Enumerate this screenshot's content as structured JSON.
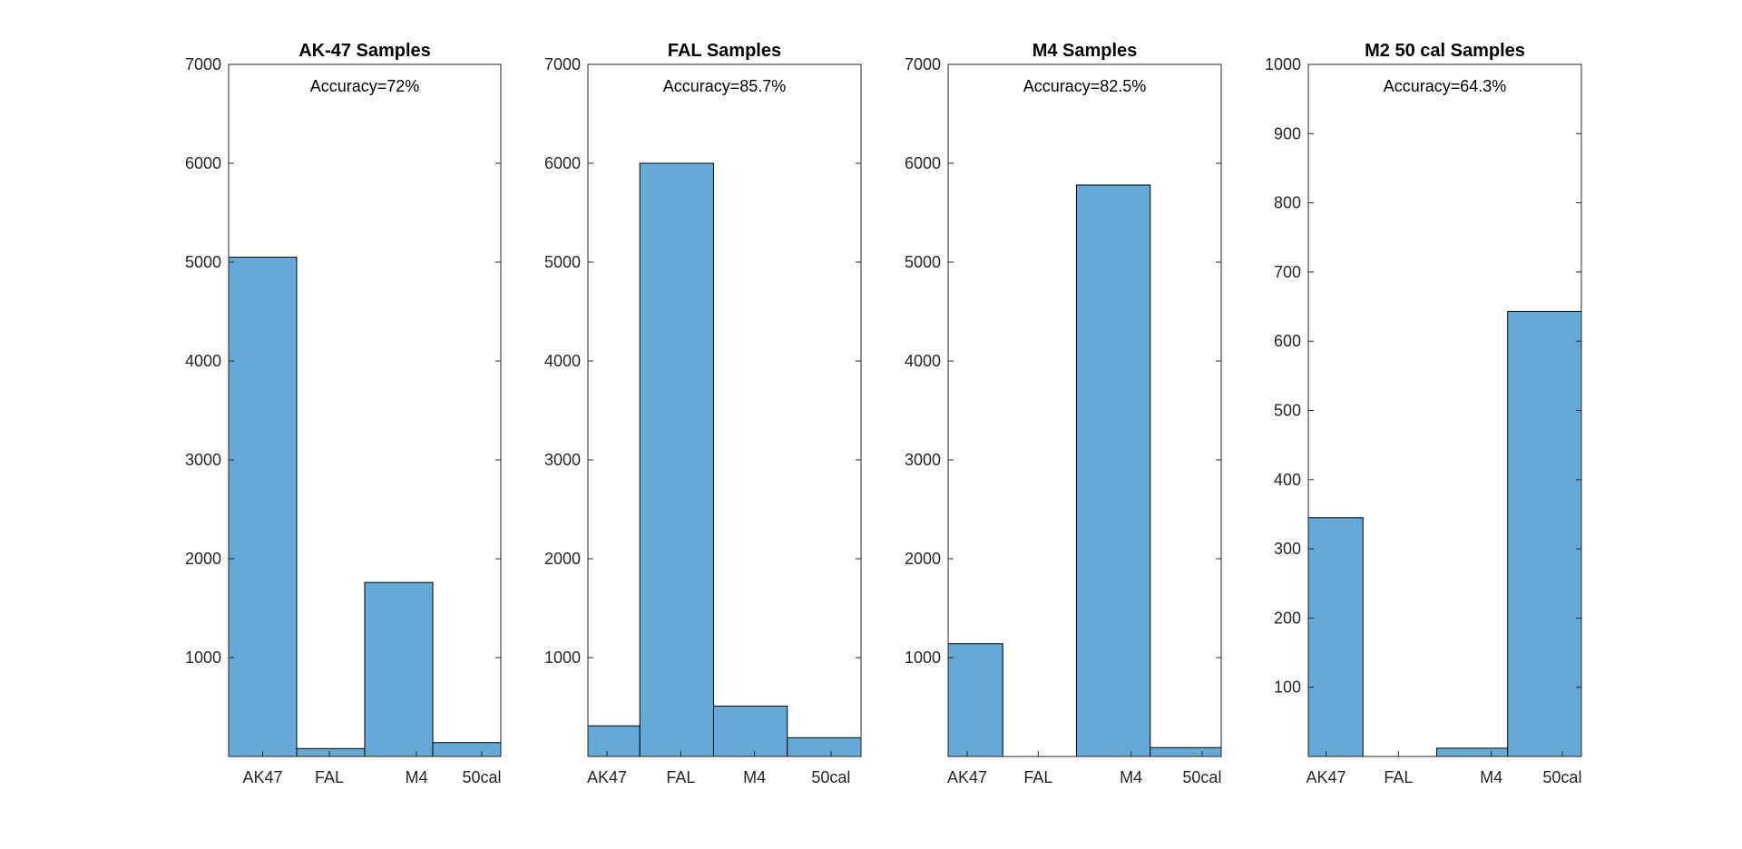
{
  "chart_data": [
    {
      "type": "bar",
      "title": "AK-47 Samples",
      "annotation": "Accuracy=72%",
      "categories": [
        "AK47",
        "FAL",
        "M4",
        "50cal"
      ],
      "values": [
        5050,
        80,
        1760,
        140
      ],
      "ylim": [
        0,
        7000
      ],
      "yticks": [
        1000,
        2000,
        3000,
        4000,
        5000,
        6000,
        7000
      ],
      "bar_color": "#65aad6",
      "xlabel": "",
      "ylabel": ""
    },
    {
      "type": "bar",
      "title": "FAL Samples",
      "annotation": "Accuracy=85.7%",
      "categories": [
        "AK47",
        "FAL",
        "M4",
        "50cal"
      ],
      "values": [
        310,
        6000,
        510,
        190
      ],
      "ylim": [
        0,
        7000
      ],
      "yticks": [
        1000,
        2000,
        3000,
        4000,
        5000,
        6000,
        7000
      ],
      "bar_color": "#65aad6",
      "xlabel": "",
      "ylabel": ""
    },
    {
      "type": "bar",
      "title": "M4 Samples",
      "annotation": "Accuracy=82.5%",
      "categories": [
        "AK47",
        "FAL",
        "M4",
        "50cal"
      ],
      "values": [
        1140,
        0,
        5780,
        90
      ],
      "ylim": [
        0,
        7000
      ],
      "yticks": [
        1000,
        2000,
        3000,
        4000,
        5000,
        6000,
        7000
      ],
      "bar_color": "#65aad6",
      "xlabel": "",
      "ylabel": ""
    },
    {
      "type": "bar",
      "title": "M2 50 cal Samples",
      "annotation": "Accuracy=64.3%",
      "categories": [
        "AK47",
        "FAL",
        "M4",
        "50cal"
      ],
      "values": [
        345,
        0,
        12,
        643
      ],
      "ylim": [
        0,
        1000
      ],
      "yticks": [
        100,
        200,
        300,
        400,
        500,
        600,
        700,
        800,
        900,
        1000
      ],
      "bar_color": "#65aad6",
      "xlabel": "",
      "ylabel": ""
    }
  ]
}
